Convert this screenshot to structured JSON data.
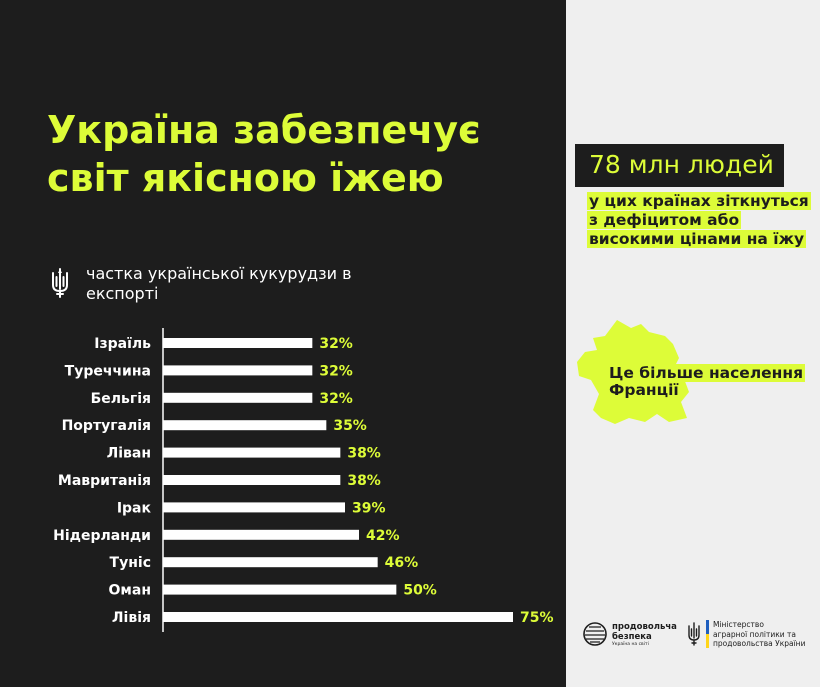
{
  "title": {
    "line1": "Україна забезпечує",
    "line2": "світ якісною їжею"
  },
  "legend": {
    "icon": "trident-icon",
    "text": "частка української кукурудзи в експорті"
  },
  "chart_data": {
    "type": "bar",
    "orientation": "horizontal",
    "categories": [
      "Ізраїль",
      "Туреччина",
      "Бельгія",
      "Португалія",
      "Ліван",
      "Мавританія",
      "Ірак",
      "Нідерланди",
      "Туніс",
      "Оман",
      "Лівія"
    ],
    "values": [
      32,
      32,
      32,
      35,
      38,
      38,
      39,
      42,
      46,
      50,
      75
    ],
    "value_labels": [
      "32%",
      "32%",
      "32%",
      "35%",
      "38%",
      "38%",
      "39%",
      "42%",
      "46%",
      "50%",
      "75%"
    ],
    "unit": "%",
    "xlim": [
      0,
      75
    ],
    "grid": false,
    "legend_position": "top-left",
    "colors": {
      "bar": "#ffffff",
      "label": "#ddfc38",
      "axis": "#ffffff"
    }
  },
  "stat": {
    "big": "78 млн людей",
    "sub": "у цих країнах зіткнуться з дефіцитом або високими цінами на їжу"
  },
  "france": {
    "icon": "france-map-icon",
    "text": "Це більше населення Франції"
  },
  "footer": {
    "logo1_icon": "globe-icon",
    "logo1_line1": "продовольча",
    "logo1_line2": "безпека",
    "logo1_tagline": "Україна на світі",
    "logo2_icon": "trident-icon",
    "logo2_line1": "Міністерство",
    "logo2_line2": "аграрної політики та",
    "logo2_line3": "продовольства України"
  },
  "colors": {
    "accent": "#ddfc38",
    "dark": "#1d1d1d",
    "light": "#efefef"
  }
}
